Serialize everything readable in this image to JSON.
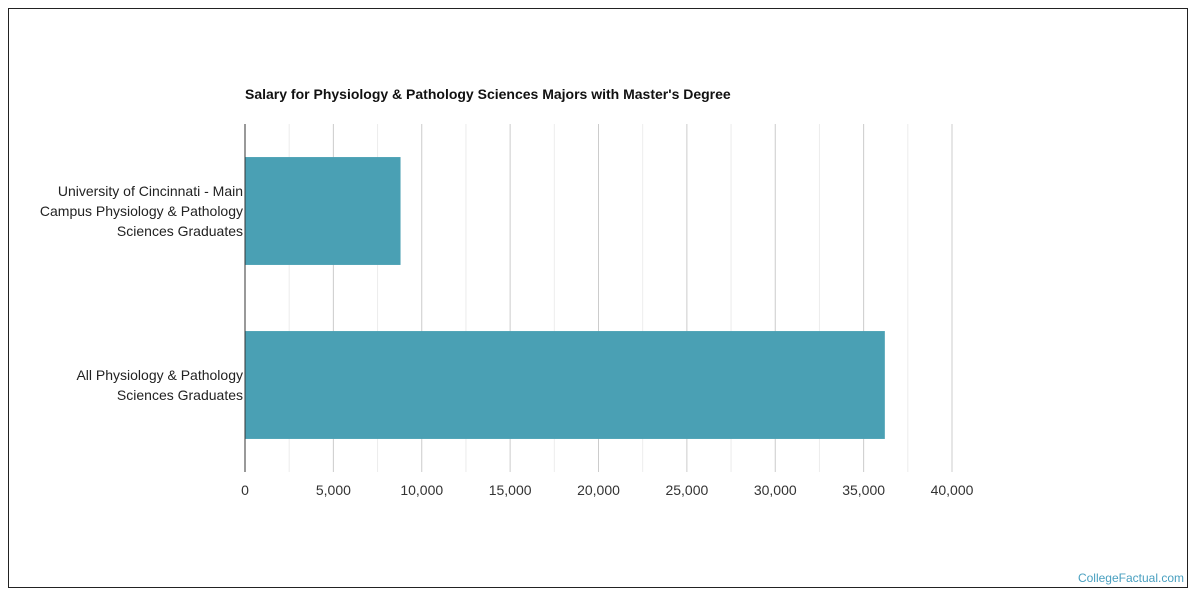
{
  "chart_data": {
    "type": "bar",
    "orientation": "horizontal",
    "title": "Salary for Physiology & Pathology Sciences Majors with Master's Degree",
    "xlabel": "",
    "ylabel": "",
    "categories": [
      "University of Cincinnati - Main Campus Physiology & Pathology Sciences Graduates",
      "All Physiology & Pathology Sciences Graduates"
    ],
    "category_lines": [
      [
        "University of Cincinnati - Main",
        "Campus Physiology & Pathology",
        "Sciences Graduates"
      ],
      [
        "All Physiology & Pathology",
        "Sciences Graduates"
      ]
    ],
    "values": [
      8800,
      36200
    ],
    "xlim": [
      0,
      40000
    ],
    "ticks": [
      0,
      5000,
      10000,
      15000,
      20000,
      25000,
      30000,
      35000,
      40000
    ],
    "tick_labels": [
      "0",
      "5,000",
      "10,000",
      "15,000",
      "20,000",
      "25,000",
      "30,000",
      "35,000",
      "40,000"
    ],
    "grid": true,
    "legend": "none",
    "bar_color": "#4aa0b4"
  },
  "credit": "CollegeFactual.com"
}
